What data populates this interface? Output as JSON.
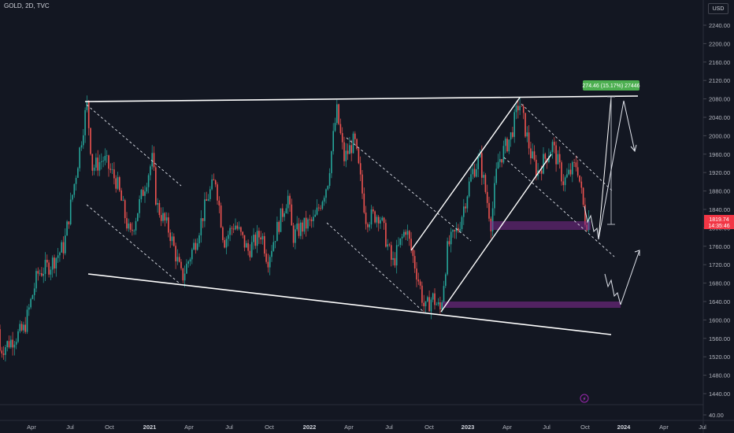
{
  "header": {
    "symbol": "GOLD, 2D, TVC",
    "currency": "USD"
  },
  "measure_label": "274.46 (15.17%) 27446",
  "price_badge": {
    "price": "1819.74",
    "countdown": "14:35:46"
  },
  "lightning_icon": "lightning-icon",
  "colors": {
    "background": "#131722",
    "up": "#26a69a",
    "down": "#ef5350",
    "grid": "#1e222d",
    "line": "#ffffff",
    "zone": "#7b2a8c",
    "badge": "#f23645",
    "measure": "#4caf50"
  },
  "chart_data": {
    "type": "candlestick",
    "y_ticks": [
      "2240.00",
      "2200.00",
      "2160.00",
      "2120.00",
      "2080.00",
      "2040.00",
      "2000.00",
      "1960.00",
      "1920.00",
      "1880.00",
      "1840.00",
      "1800.00",
      "1760.00",
      "1720.00",
      "1680.00",
      "1640.00",
      "1600.00",
      "1560.00",
      "1520.00",
      "1480.00",
      "1440.00",
      "40.00"
    ],
    "x_ticks": [
      "Apr",
      "Jul",
      "Oct",
      "2021",
      "Apr",
      "Jul",
      "Oct",
      "2022",
      "Apr",
      "Jul",
      "Oct",
      "2023",
      "Apr",
      "Jul",
      "Oct",
      "2024",
      "Apr",
      "Jul"
    ],
    "bold_x_ticks": [
      "2021",
      "2022",
      "2023",
      "2024"
    ],
    "price_path": [
      [
        "2020-03",
        1580
      ],
      [
        "2020-04",
        1700
      ],
      [
        "2020-05",
        1720
      ],
      [
        "2020-06",
        1760
      ],
      [
        "2020-07",
        1930
      ],
      [
        "2020-08-07",
        2070
      ],
      [
        "2020-08-20",
        1930
      ],
      [
        "2020-09",
        1950
      ],
      [
        "2020-10",
        1900
      ],
      [
        "2020-11",
        1780
      ],
      [
        "2020-12",
        1880
      ],
      [
        "2021-01-06",
        1950
      ],
      [
        "2021-01",
        1850
      ],
      [
        "2021-02",
        1790
      ],
      [
        "2021-03",
        1690
      ],
      [
        "2021-04",
        1770
      ],
      [
        "2021-05",
        1870
      ],
      [
        "2021-06-01",
        1905
      ],
      [
        "2021-06-20",
        1770
      ],
      [
        "2021-07",
        1810
      ],
      [
        "2021-08",
        1750
      ],
      [
        "2021-09",
        1790
      ],
      [
        "2021-09-29",
        1730
      ],
      [
        "2021-10",
        1780
      ],
      [
        "2021-11-15",
        1870
      ],
      [
        "2021-11-26",
        1780
      ],
      [
        "2021-12",
        1800
      ],
      [
        "2022-01",
        1815
      ],
      [
        "2022-02",
        1900
      ],
      [
        "2022-03-08",
        2055
      ],
      [
        "2022-03-25",
        1950
      ],
      [
        "2022-04-18",
        1990
      ],
      [
        "2022-05",
        1820
      ],
      [
        "2022-06",
        1830
      ],
      [
        "2022-07",
        1720
      ],
      [
        "2022-08",
        1800
      ],
      [
        "2022-09",
        1680
      ],
      [
        "2022-09-28",
        1620
      ],
      [
        "2022-10",
        1650
      ],
      [
        "2022-11-03",
        1620
      ],
      [
        "2022-11-20",
        1760
      ],
      [
        "2022-12",
        1800
      ],
      [
        "2023-01",
        1920
      ],
      [
        "2023-02-02",
        1950
      ],
      [
        "2023-02-28",
        1810
      ],
      [
        "2023-03",
        1940
      ],
      [
        "2023-04",
        2000
      ],
      [
        "2023-05-04",
        2075
      ],
      [
        "2023-05-31",
        1960
      ],
      [
        "2023-06",
        1920
      ],
      [
        "2023-07-20",
        1980
      ],
      [
        "2023-08",
        1900
      ],
      [
        "2023-09",
        1940
      ],
      [
        "2023-10-05",
        1810
      ],
      [
        "2023-10-12",
        1820
      ]
    ]
  }
}
